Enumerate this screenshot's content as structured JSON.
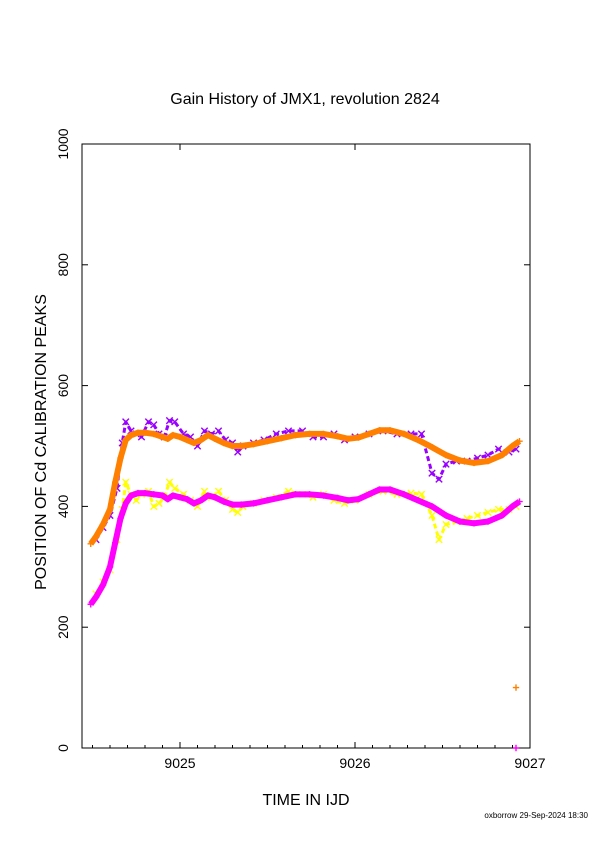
{
  "chart_data": {
    "type": "scatter",
    "title": "Gain History of JMX1, revolution 2824",
    "xlabel": "TIME IN IJD",
    "ylabel": "POSITION OF Cd CALIBRATION PEAKS",
    "xlim": [
      9024.44,
      9027
    ],
    "ylim": [
      0,
      1000
    ],
    "x_ticks": [
      9025,
      9026,
      9027
    ],
    "y_ticks": [
      0,
      200,
      400,
      600,
      800,
      1000
    ],
    "grid": false,
    "legend": "none",
    "series": [
      {
        "color": "#9900ff",
        "marker": "x",
        "points": [
          [
            9024.52,
            345
          ],
          [
            9024.56,
            365
          ],
          [
            9024.6,
            385
          ],
          [
            9024.64,
            430
          ],
          [
            9024.67,
            505
          ],
          [
            9024.69,
            540
          ],
          [
            9024.72,
            525
          ],
          [
            9024.75,
            520
          ],
          [
            9024.78,
            515
          ],
          [
            9024.82,
            540
          ],
          [
            9024.85,
            535
          ],
          [
            9024.88,
            520
          ],
          [
            9024.91,
            515
          ],
          [
            9024.94,
            542
          ],
          [
            9024.97,
            540
          ],
          [
            9025.02,
            520
          ],
          [
            9025.06,
            515
          ],
          [
            9025.1,
            500
          ],
          [
            9025.14,
            525
          ],
          [
            9025.18,
            520
          ],
          [
            9025.22,
            525
          ],
          [
            9025.26,
            510
          ],
          [
            9025.3,
            505
          ],
          [
            9025.33,
            490
          ],
          [
            9025.36,
            500
          ],
          [
            9025.42,
            505
          ],
          [
            9025.48,
            510
          ],
          [
            9025.55,
            520
          ],
          [
            9025.62,
            525
          ],
          [
            9025.7,
            525
          ],
          [
            9025.76,
            515
          ],
          [
            9025.82,
            515
          ],
          [
            9025.88,
            520
          ],
          [
            9025.94,
            510
          ],
          [
            9026.0,
            515
          ],
          [
            9026.08,
            520
          ],
          [
            9026.16,
            525
          ],
          [
            9026.24,
            520
          ],
          [
            9026.32,
            520
          ],
          [
            9026.38,
            520
          ],
          [
            9026.44,
            455
          ],
          [
            9026.48,
            445
          ],
          [
            9026.52,
            470
          ],
          [
            9026.58,
            475
          ],
          [
            9026.64,
            475
          ],
          [
            9026.7,
            480
          ],
          [
            9026.76,
            485
          ],
          [
            9026.82,
            495
          ],
          [
            9026.88,
            490
          ],
          [
            9026.92,
            495
          ]
        ]
      },
      {
        "color": "#ffff00",
        "marker": "x",
        "points": [
          [
            9024.52,
            255
          ],
          [
            9024.56,
            275
          ],
          [
            9024.6,
            295
          ],
          [
            9024.64,
            345
          ],
          [
            9024.67,
            395
          ],
          [
            9024.69,
            440
          ],
          [
            9024.72,
            420
          ],
          [
            9024.75,
            410
          ],
          [
            9024.78,
            420
          ],
          [
            9024.82,
            425
          ],
          [
            9024.85,
            400
          ],
          [
            9024.88,
            405
          ],
          [
            9024.91,
            415
          ],
          [
            9024.94,
            440
          ],
          [
            9024.97,
            430
          ],
          [
            9025.02,
            420
          ],
          [
            9025.06,
            410
          ],
          [
            9025.1,
            400
          ],
          [
            9025.14,
            425
          ],
          [
            9025.18,
            415
          ],
          [
            9025.22,
            425
          ],
          [
            9025.26,
            410
          ],
          [
            9025.3,
            395
          ],
          [
            9025.33,
            390
          ],
          [
            9025.36,
            400
          ],
          [
            9025.42,
            405
          ],
          [
            9025.48,
            410
          ],
          [
            9025.55,
            415
          ],
          [
            9025.62,
            425
          ],
          [
            9025.7,
            420
          ],
          [
            9025.76,
            415
          ],
          [
            9025.82,
            420
          ],
          [
            9025.88,
            410
          ],
          [
            9025.94,
            405
          ],
          [
            9026.0,
            410
          ],
          [
            9026.08,
            420
          ],
          [
            9026.16,
            425
          ],
          [
            9026.24,
            420
          ],
          [
            9026.32,
            422
          ],
          [
            9026.38,
            420
          ],
          [
            9026.44,
            385
          ],
          [
            9026.48,
            345
          ],
          [
            9026.52,
            370
          ],
          [
            9026.58,
            375
          ],
          [
            9026.64,
            380
          ],
          [
            9026.7,
            385
          ],
          [
            9026.76,
            390
          ],
          [
            9026.82,
            395
          ],
          [
            9026.88,
            395
          ],
          [
            9026.92,
            400
          ]
        ]
      },
      {
        "color": "#ff00ff",
        "marker": "+",
        "points": [
          [
            9024.49,
            238
          ],
          [
            9024.52,
            250
          ],
          [
            9024.56,
            270
          ],
          [
            9024.6,
            300
          ],
          [
            9024.63,
            340
          ],
          [
            9024.66,
            380
          ],
          [
            9024.69,
            405
          ],
          [
            9024.72,
            418
          ],
          [
            9024.76,
            422
          ],
          [
            9024.8,
            422
          ],
          [
            9024.85,
            420
          ],
          [
            9024.9,
            418
          ],
          [
            9024.93,
            412
          ],
          [
            9024.96,
            418
          ],
          [
            9025.0,
            415
          ],
          [
            9025.04,
            412
          ],
          [
            9025.08,
            405
          ],
          [
            9025.12,
            410
          ],
          [
            9025.16,
            418
          ],
          [
            9025.2,
            415
          ],
          [
            9025.25,
            408
          ],
          [
            9025.3,
            403
          ],
          [
            9025.35,
            403
          ],
          [
            9025.42,
            405
          ],
          [
            9025.5,
            410
          ],
          [
            9025.58,
            415
          ],
          [
            9025.66,
            420
          ],
          [
            9025.74,
            420
          ],
          [
            9025.82,
            418
          ],
          [
            9025.9,
            414
          ],
          [
            9025.96,
            410
          ],
          [
            9026.02,
            412
          ],
          [
            9026.08,
            420
          ],
          [
            9026.14,
            428
          ],
          [
            9026.2,
            428
          ],
          [
            9026.28,
            420
          ],
          [
            9026.36,
            410
          ],
          [
            9026.44,
            400
          ],
          [
            9026.52,
            385
          ],
          [
            9026.6,
            375
          ],
          [
            9026.68,
            372
          ],
          [
            9026.76,
            375
          ],
          [
            9026.84,
            385
          ],
          [
            9026.9,
            400
          ],
          [
            9026.94,
            408
          ],
          [
            9026.92,
            0
          ]
        ]
      },
      {
        "color": "#ff8000",
        "marker": "+",
        "points": [
          [
            9024.49,
            338
          ],
          [
            9024.52,
            350
          ],
          [
            9024.56,
            370
          ],
          [
            9024.6,
            395
          ],
          [
            9024.63,
            440
          ],
          [
            9024.66,
            480
          ],
          [
            9024.69,
            510
          ],
          [
            9024.72,
            518
          ],
          [
            9024.76,
            522
          ],
          [
            9024.8,
            522
          ],
          [
            9024.85,
            520
          ],
          [
            9024.9,
            515
          ],
          [
            9024.93,
            512
          ],
          [
            9024.96,
            518
          ],
          [
            9025.0,
            515
          ],
          [
            9025.04,
            510
          ],
          [
            9025.08,
            505
          ],
          [
            9025.12,
            510
          ],
          [
            9025.16,
            518
          ],
          [
            9025.2,
            512
          ],
          [
            9025.25,
            505
          ],
          [
            9025.3,
            500
          ],
          [
            9025.35,
            500
          ],
          [
            9025.42,
            503
          ],
          [
            9025.5,
            508
          ],
          [
            9025.58,
            513
          ],
          [
            9025.66,
            518
          ],
          [
            9025.74,
            520
          ],
          [
            9025.82,
            520
          ],
          [
            9025.9,
            516
          ],
          [
            9025.96,
            512
          ],
          [
            9026.02,
            514
          ],
          [
            9026.08,
            520
          ],
          [
            9026.14,
            526
          ],
          [
            9026.2,
            526
          ],
          [
            9026.28,
            520
          ],
          [
            9026.36,
            510
          ],
          [
            9026.44,
            498
          ],
          [
            9026.52,
            485
          ],
          [
            9026.6,
            476
          ],
          [
            9026.68,
            472
          ],
          [
            9026.76,
            475
          ],
          [
            9026.84,
            485
          ],
          [
            9026.9,
            500
          ],
          [
            9026.94,
            508
          ],
          [
            9026.92,
            100
          ]
        ]
      }
    ],
    "footer_note": "oxborrow 29-Sep-2024 18:30"
  }
}
